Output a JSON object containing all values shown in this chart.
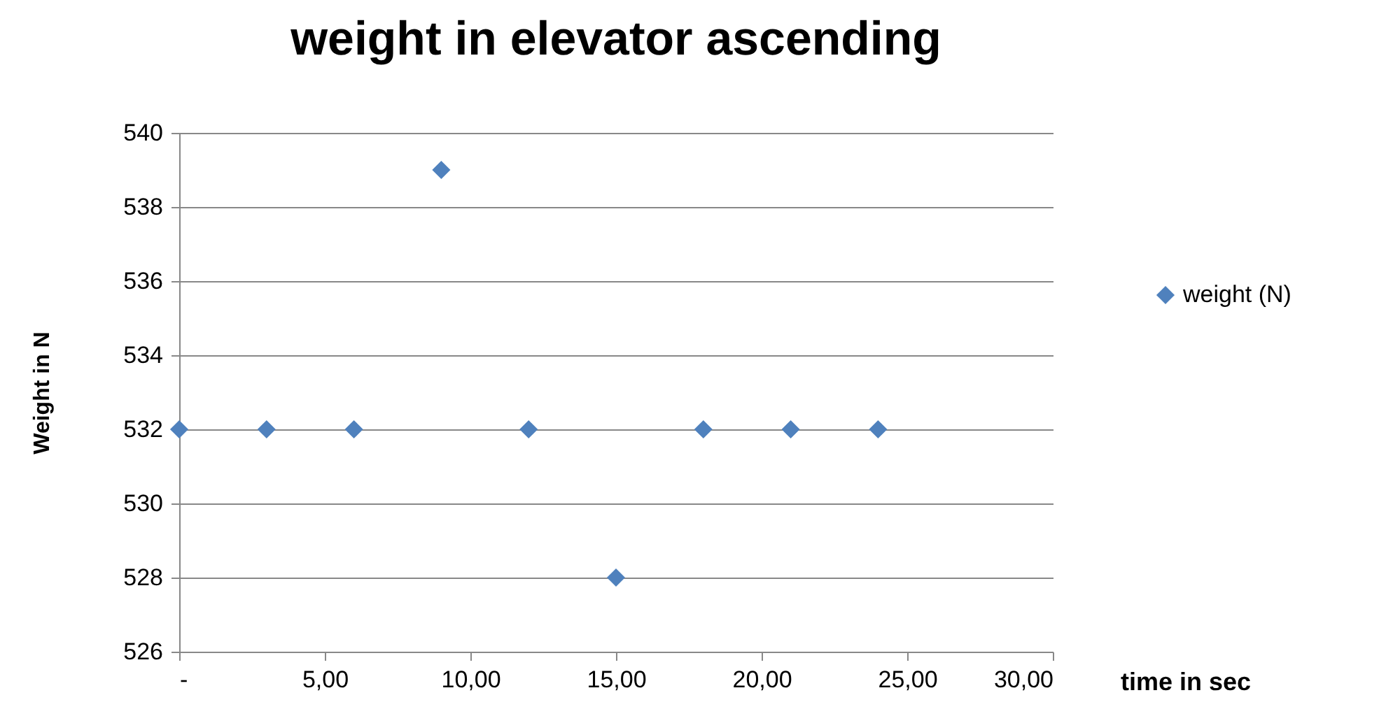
{
  "chart_data": {
    "type": "scatter",
    "title": "weight in elevator ascending",
    "xlabel": "time in sec",
    "ylabel": "Weight in N",
    "x": [
      0,
      3,
      6,
      9,
      12,
      15,
      18,
      21,
      24
    ],
    "series": [
      {
        "name": "weight (N)",
        "color": "#4f81bd",
        "values": [
          532,
          532,
          532,
          539,
          532,
          528,
          532,
          532,
          532
        ]
      }
    ],
    "xlim": [
      0,
      30
    ],
    "xticks": [
      {
        "value": 0,
        "label": "-"
      },
      {
        "value": 5,
        "label": "5,00"
      },
      {
        "value": 10,
        "label": "10,00"
      },
      {
        "value": 15,
        "label": "15,00"
      },
      {
        "value": 20,
        "label": "20,00"
      },
      {
        "value": 25,
        "label": "25,00"
      },
      {
        "value": 30,
        "label": "30,00"
      }
    ],
    "ylim": [
      526,
      540
    ],
    "yticks": [
      526,
      528,
      530,
      532,
      534,
      536,
      538,
      540
    ],
    "grid": "y",
    "legend": "right",
    "marker": "diamond"
  }
}
